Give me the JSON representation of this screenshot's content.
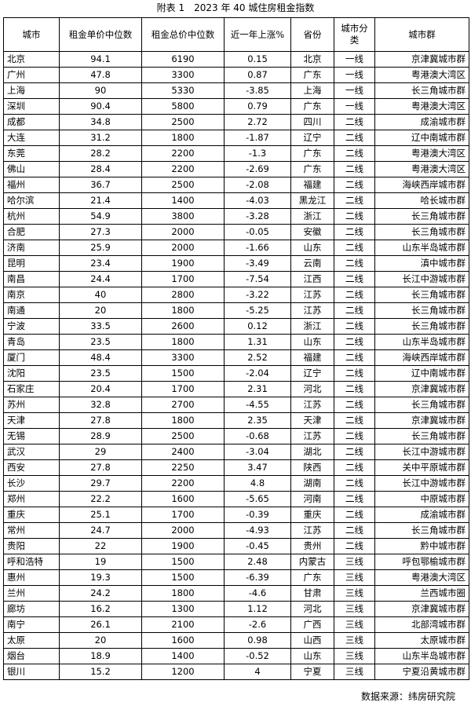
{
  "title": "附表 1　2023 年 40 城住房租金指数",
  "table": {
    "headers": [
      "城市",
      "租金单价中位数",
      "租金总价中位数",
      "近一年上涨%",
      "省份",
      "城市分类",
      "城市群"
    ],
    "rows": [
      [
        "北京",
        "94.1",
        "6190",
        "0.15",
        "北京",
        "一线",
        "京津冀城市群"
      ],
      [
        "广州",
        "47.8",
        "3300",
        "0.87",
        "广东",
        "一线",
        "粤港澳大湾区"
      ],
      [
        "上海",
        "90",
        "5330",
        "-3.85",
        "上海",
        "一线",
        "长三角城市群"
      ],
      [
        "深圳",
        "90.4",
        "5800",
        "0.79",
        "广东",
        "一线",
        "粤港澳大湾区"
      ],
      [
        "成都",
        "34.8",
        "2500",
        "2.72",
        "四川",
        "二线",
        "成渝城市群"
      ],
      [
        "大连",
        "31.2",
        "1800",
        "-1.87",
        "辽宁",
        "二线",
        "辽中南城市群"
      ],
      [
        "东莞",
        "28.2",
        "2200",
        "-1.3",
        "广东",
        "二线",
        "粤港澳大湾区"
      ],
      [
        "佛山",
        "28.4",
        "2200",
        "-2.69",
        "广东",
        "二线",
        "粤港澳大湾区"
      ],
      [
        "福州",
        "36.7",
        "2500",
        "-2.08",
        "福建",
        "二线",
        "海峡西岸城市群"
      ],
      [
        "哈尔滨",
        "21.4",
        "1400",
        "-4.03",
        "黑龙江",
        "二线",
        "哈长城市群"
      ],
      [
        "杭州",
        "54.9",
        "3800",
        "-3.28",
        "浙江",
        "二线",
        "长三角城市群"
      ],
      [
        "合肥",
        "27.3",
        "2000",
        "-0.05",
        "安徽",
        "二线",
        "长三角城市群"
      ],
      [
        "济南",
        "25.9",
        "2000",
        "-1.66",
        "山东",
        "二线",
        "山东半岛城市群"
      ],
      [
        "昆明",
        "23.4",
        "1900",
        "-3.49",
        "云南",
        "二线",
        "滇中城市群"
      ],
      [
        "南昌",
        "24.4",
        "1700",
        "-7.54",
        "江西",
        "二线",
        "长江中游城市群"
      ],
      [
        "南京",
        "40",
        "2800",
        "-3.22",
        "江苏",
        "二线",
        "长三角城市群"
      ],
      [
        "南通",
        "20",
        "1800",
        "-5.25",
        "江苏",
        "二线",
        "长三角城市群"
      ],
      [
        "宁波",
        "33.5",
        "2600",
        "0.12",
        "浙江",
        "二线",
        "长三角城市群"
      ],
      [
        "青岛",
        "23.5",
        "1800",
        "1.31",
        "山东",
        "二线",
        "山东半岛城市群"
      ],
      [
        "厦门",
        "48.4",
        "3300",
        "2.52",
        "福建",
        "二线",
        "海峡西岸城市群"
      ],
      [
        "沈阳",
        "23.5",
        "1500",
        "-2.04",
        "辽宁",
        "二线",
        "辽中南城市群"
      ],
      [
        "石家庄",
        "20.4",
        "1700",
        "2.31",
        "河北",
        "二线",
        "京津冀城市群"
      ],
      [
        "苏州",
        "32.8",
        "2700",
        "-4.55",
        "江苏",
        "二线",
        "长三角城市群"
      ],
      [
        "天津",
        "27.8",
        "1800",
        "2.35",
        "天津",
        "二线",
        "京津冀城市群"
      ],
      [
        "无锡",
        "28.9",
        "2500",
        "-0.68",
        "江苏",
        "二线",
        "长三角城市群"
      ],
      [
        "武汉",
        "29",
        "2400",
        "-3.04",
        "湖北",
        "二线",
        "长江中游城市群"
      ],
      [
        "西安",
        "27.8",
        "2250",
        "3.47",
        "陕西",
        "二线",
        "关中平原城市群"
      ],
      [
        "长沙",
        "29.7",
        "2200",
        "4.8",
        "湖南",
        "二线",
        "长江中游城市群"
      ],
      [
        "郑州",
        "22.2",
        "1600",
        "-5.65",
        "河南",
        "二线",
        "中原城市群"
      ],
      [
        "重庆",
        "25.1",
        "1700",
        "-0.39",
        "重庆",
        "二线",
        "成渝城市群"
      ],
      [
        "常州",
        "24.7",
        "2000",
        "-4.93",
        "江苏",
        "二线",
        "长三角城市群"
      ],
      [
        "贵阳",
        "22",
        "1900",
        "-0.45",
        "贵州",
        "二线",
        "黔中城市群"
      ],
      [
        "呼和浩特",
        "19",
        "1500",
        "2.48",
        "内蒙古",
        "三线",
        "呼包鄂榆城市群"
      ],
      [
        "惠州",
        "19.3",
        "1500",
        "-6.39",
        "广东",
        "三线",
        "粤港澳大湾区"
      ],
      [
        "兰州",
        "24.2",
        "1800",
        "-4.6",
        "甘肃",
        "三线",
        "兰西城市圈"
      ],
      [
        "廊坊",
        "16.2",
        "1300",
        "1.12",
        "河北",
        "三线",
        "京津冀城市群"
      ],
      [
        "南宁",
        "26.1",
        "2100",
        "-2.6",
        "广西",
        "三线",
        "北部湾城市群"
      ],
      [
        "太原",
        "20",
        "1600",
        "0.98",
        "山西",
        "三线",
        "太原城市群"
      ],
      [
        "烟台",
        "18.9",
        "1400",
        "-0.52",
        "山东",
        "三线",
        "山东半岛城市群"
      ],
      [
        "银川",
        "15.2",
        "1200",
        "4",
        "宁夏",
        "三线",
        "宁夏沿黄城市群"
      ]
    ]
  },
  "source": "数据来源：纬房研究院"
}
